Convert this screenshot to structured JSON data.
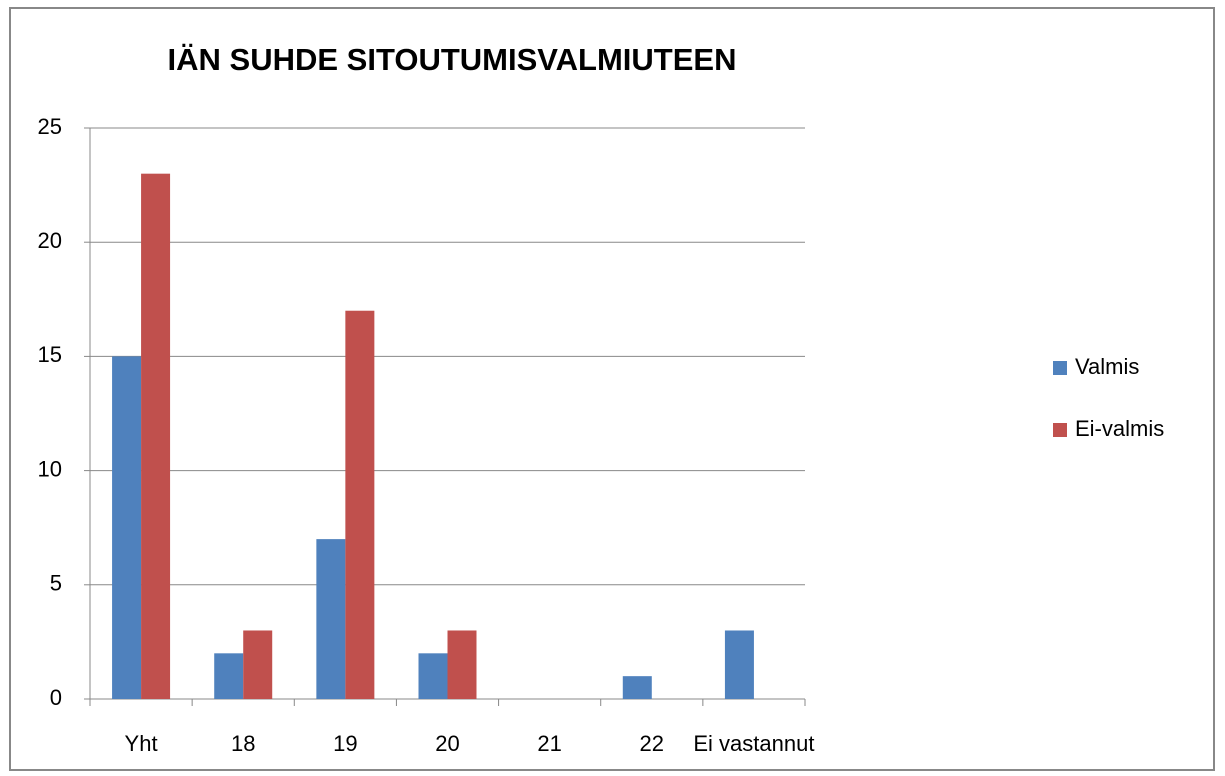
{
  "chart_data": {
    "type": "bar",
    "title": "IÄN SUHDE SITOUTUMISVALMIUTEEN",
    "categories": [
      "Yht",
      "18",
      "19",
      "20",
      "21",
      "22",
      "Ei vastannut"
    ],
    "series": [
      {
        "name": "Valmis",
        "color": "#4f81bd",
        "values": [
          15,
          2,
          7,
          2,
          0,
          1,
          3
        ]
      },
      {
        "name": "Ei-valmis",
        "color": "#c0504d",
        "values": [
          23,
          3,
          17,
          3,
          0,
          0,
          0
        ]
      }
    ],
    "ylim": [
      0,
      25
    ],
    "yticks": [
      0,
      5,
      10,
      15,
      20,
      25
    ],
    "grid": true,
    "legend": "right"
  }
}
